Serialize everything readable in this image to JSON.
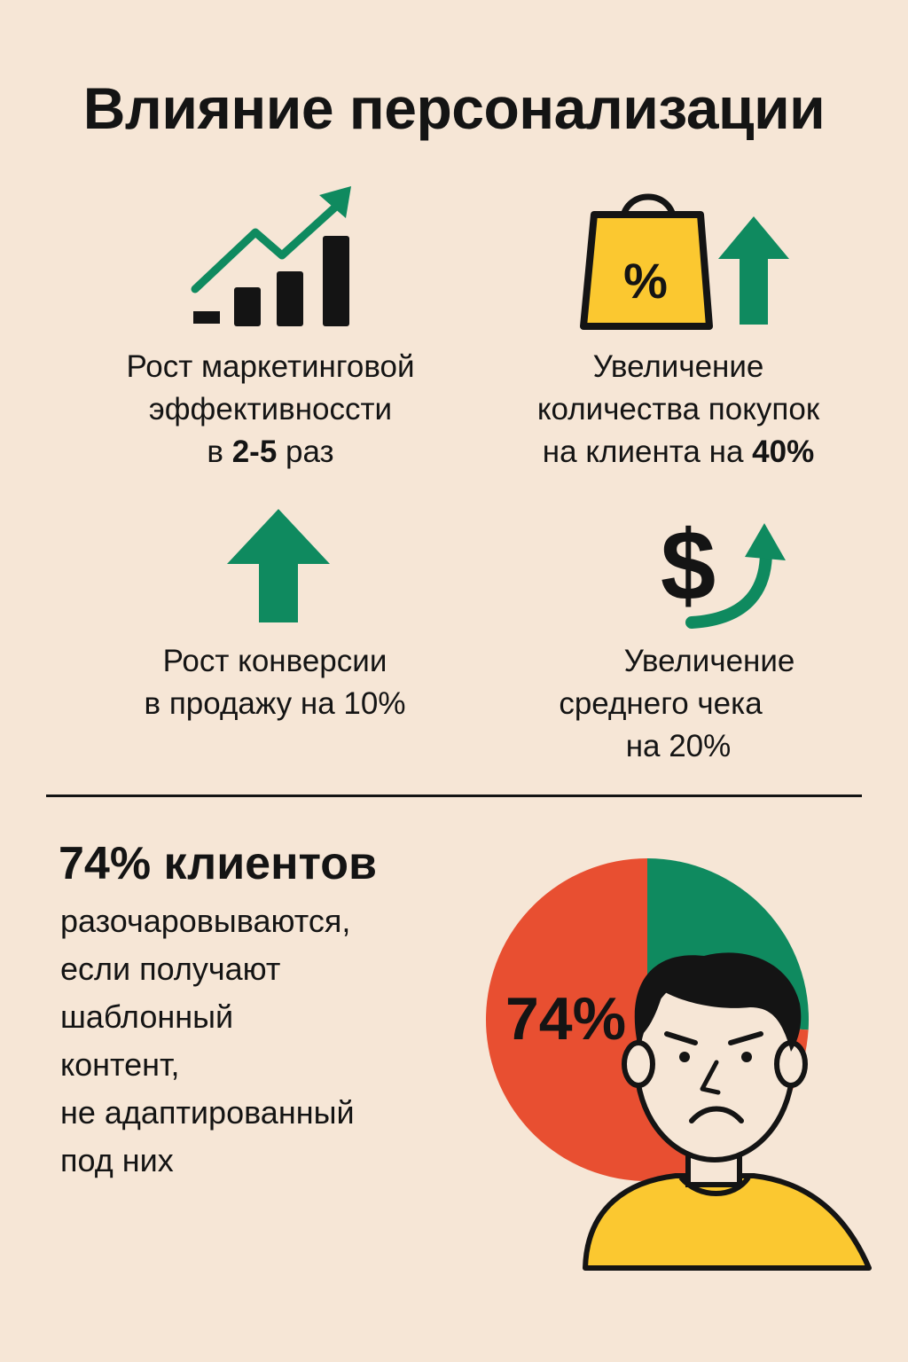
{
  "title": "Влияние персонализации",
  "benefits": [
    {
      "icon": "growth-chart-icon",
      "lines": [
        "Рост маркетинговой",
        "эффективноссти"
      ],
      "last_prefix": "в ",
      "last_bold": "2-5",
      "last_suffix": " раз"
    },
    {
      "icon": "shopping-bag-percent-icon",
      "lines": [
        "Увеличение",
        "количества покупок"
      ],
      "last_prefix": "на клиента на ",
      "last_bold": "40%",
      "last_suffix": ""
    },
    {
      "icon": "up-arrow-icon",
      "lines": [
        "Рост конверсии"
      ],
      "last_prefix": "в продажу на 10%",
      "last_bold": "",
      "last_suffix": ""
    },
    {
      "icon": "dollar-growth-icon",
      "lines": [
        "Увеличение",
        "среднего чека"
      ],
      "last_prefix": "на 20%",
      "last_bold": "",
      "last_suffix": ""
    }
  ],
  "stat": {
    "headline": "74% клиентов",
    "body_lines": [
      "разочаровываются,",
      "если получают",
      "шаблонный",
      "контент,",
      "не адаптированный",
      "под них"
    ]
  },
  "chart_data": {
    "type": "pie",
    "slices": [
      {
        "label": "74%",
        "value": 74,
        "color": "#e84f31"
      },
      {
        "label": "",
        "value": 26,
        "color": "#0f8a5f"
      }
    ]
  },
  "colors": {
    "background": "#f6e6d6",
    "green": "#0f8a5f",
    "red": "#e84f31",
    "yellow": "#fbc830",
    "ink": "#141414"
  }
}
